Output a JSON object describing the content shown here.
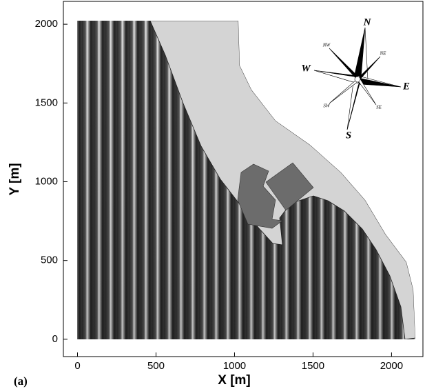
{
  "chart_data": {
    "type": "field",
    "xlabel": "X [m]",
    "ylabel": "Y [m]",
    "panel_label": "(a)",
    "xlim": [
      -90,
      2200
    ],
    "ylim": [
      -110,
      2145
    ],
    "xticks": [
      0,
      500,
      1000,
      1500,
      2000
    ],
    "yticks": [
      0,
      500,
      1000,
      1500,
      2000
    ],
    "compass": [
      "N",
      "S",
      "E",
      "W",
      "NE",
      "NW",
      "SE",
      "SW"
    ]
  }
}
